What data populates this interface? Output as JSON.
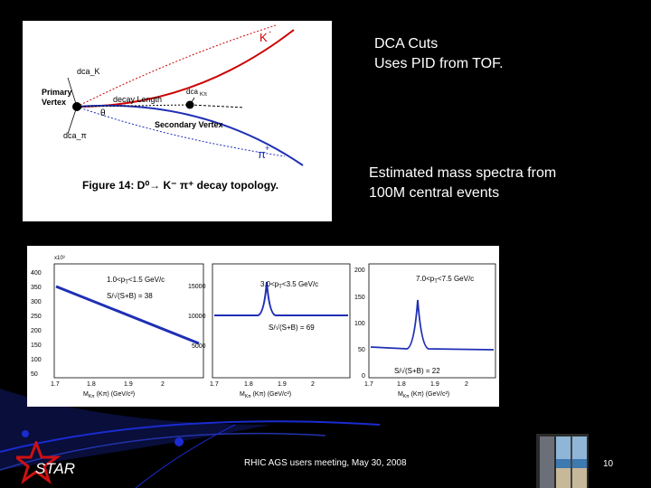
{
  "notes": {
    "dca_line1": "DCA Cuts",
    "dca_line2": "Uses PID from TOF.",
    "mass_line1": "Estimated mass spectra from",
    "mass_line2": "100M central events"
  },
  "decay_figure": {
    "kaon_label": "K",
    "kaon_sup": "-",
    "dca_k_label": "dca_K",
    "primary_vertex_line1": "Primary",
    "primary_vertex_line2": "Vertex",
    "decay_length_label": "decay Length",
    "dca_kpi_label": "dca",
    "dca_kpi_sub": "Kπ",
    "theta_label": "θ",
    "secondary_vertex_label": "Secondary Vertex",
    "dca_pi_label": "dca_π",
    "pion_label": "π",
    "pion_sup": "+",
    "caption": "Figure 14: D⁰→ K⁻ π⁺ decay topology."
  },
  "mass_plots": [
    {
      "label1": "1.0<p",
      "label1_sub": "T",
      "label1_rest": "<1.5 GeV/c",
      "label2": "S/√(S+B) = 38",
      "yticks": [
        "400",
        "350",
        "300",
        "250",
        "200",
        "150",
        "100",
        "50"
      ],
      "exponent": "x10³",
      "xticks": [
        "1.7",
        "1.8",
        "1.9",
        "2"
      ],
      "xlabel": "M",
      "xlabel_sub": "Kπ",
      "xlabel_rest": " (Kπ) (GeV/c²)"
    },
    {
      "label1": "3.0<p",
      "label1_sub": "T",
      "label1_rest": "<3.5 GeV/c",
      "label2": "S/√(S+B) = 69",
      "yticks": [
        "15000",
        "10000",
        "5000"
      ],
      "xticks": [
        "1.7",
        "1.8",
        "1.9",
        "2"
      ],
      "xlabel": "M",
      "xlabel_sub": "Kπ",
      "xlabel_rest": " (Kπ) (GeV/c²)"
    },
    {
      "label1": "7.0<p",
      "label1_sub": "T",
      "label1_rest": "<7.5 GeV/c",
      "label2": "S/√(S+B) = 22",
      "yticks": [
        "200",
        "150",
        "100",
        "50",
        "0"
      ],
      "xticks": [
        "1.7",
        "1.8",
        "1.9",
        "2"
      ],
      "xlabel": "M",
      "xlabel_sub": "Kπ",
      "xlabel_rest": " (Kπ) (GeV/c²)"
    }
  ],
  "footer": {
    "star_label": "STAR",
    "meeting_text": "RHIC AGS users meeting, May 30, 2008",
    "page_number": "10"
  },
  "colors": {
    "kaon_track": "#cc0000",
    "pion_track": "#1f2fb5",
    "star_red": "#cc1111",
    "blue_deco": "#1a2bd0"
  }
}
